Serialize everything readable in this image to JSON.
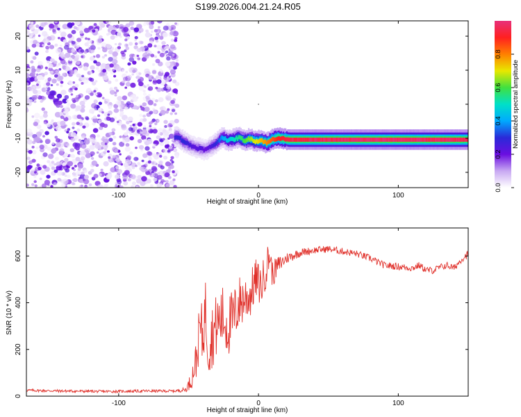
{
  "title": "S199.2026.004.21.24.R05",
  "chart_data": [
    {
      "type": "heatmap",
      "xlabel": "Height of straight line (km)",
      "ylabel": "Frequency (Hz)",
      "xlim": [
        -166,
        150
      ],
      "ylim": [
        -24.5,
        24.5
      ],
      "xticks": [
        -100,
        0,
        100
      ],
      "yticks": [
        -20,
        -10,
        0,
        10,
        20
      ],
      "colorbar": {
        "label": "Normalized spectral amplitude",
        "range": [
          0,
          1
        ],
        "ticks": [
          0.0,
          0.2,
          0.4,
          0.6,
          0.8
        ],
        "colormap": [
          "#ffffff",
          "#c8a8f2",
          "#6a0ee0",
          "#2a2ad8",
          "#00aaff",
          "#00e0c8",
          "#40e040",
          "#e8e800",
          "#ff8000",
          "#ff2020",
          "#e8307a"
        ]
      },
      "noise_band_x": [
        -166,
        -60
      ],
      "signal_trace": {
        "x": [
          -58,
          -54,
          -50,
          -46,
          -42,
          -38,
          -34,
          -30,
          -26,
          -22,
          -18,
          -14,
          -10,
          -6,
          -2,
          2,
          6,
          10,
          14,
          18,
          22,
          40,
          60,
          80,
          100,
          120,
          150
        ],
        "freq": [
          -9.5,
          -10.8,
          -11.8,
          -12.6,
          -13.0,
          -13.4,
          -12.4,
          -11.3,
          -9.6,
          -10.6,
          -10.3,
          -9.8,
          -10.7,
          -10.1,
          -10.9,
          -10.6,
          -11.4,
          -10.3,
          -9.9,
          -10.2,
          -10.4,
          -10.4,
          -10.4,
          -10.4,
          -10.4,
          -10.4,
          -10.4
        ],
        "amp": [
          0.28,
          0.3,
          0.26,
          0.22,
          0.24,
          0.2,
          0.25,
          0.3,
          0.4,
          0.45,
          0.5,
          0.55,
          0.6,
          0.65,
          0.7,
          0.75,
          0.8,
          0.85,
          0.9,
          0.92,
          0.95,
          0.96,
          0.97,
          0.98,
          0.98,
          0.97,
          0.96
        ]
      }
    },
    {
      "type": "line",
      "xlabel": "Height of straight line (km)",
      "ylabel": "SNR (10 * v/v)",
      "xlim": [
        -166,
        150
      ],
      "ylim": [
        0,
        720
      ],
      "xticks": [
        -100,
        0,
        100
      ],
      "yticks": [
        0,
        200,
        400,
        600
      ],
      "line_color": "#e0302a",
      "series": [
        {
          "x": [
            -166,
            -140,
            -110,
            -80,
            -60,
            -52,
            -48,
            -44,
            -42,
            -40,
            -38,
            -36,
            -34,
            -30,
            -26,
            -22,
            -18,
            -14,
            -10,
            -6,
            -2,
            2,
            6,
            8,
            10,
            14,
            20,
            30,
            40,
            50,
            60,
            70,
            80,
            90,
            100,
            110,
            115,
            120,
            125,
            130,
            135,
            140,
            145,
            150
          ],
          "values": [
            25,
            22,
            20,
            22,
            22,
            28,
            70,
            170,
            300,
            250,
            380,
            220,
            250,
            300,
            340,
            300,
            330,
            400,
            420,
            430,
            500,
            470,
            560,
            610,
            520,
            560,
            590,
            615,
            625,
            630,
            620,
            610,
            590,
            560,
            555,
            548,
            560,
            540,
            538,
            552,
            560,
            548,
            585,
            610
          ],
          "noise": [
            6,
            6,
            6,
            6,
            6,
            10,
            40,
            90,
            120,
            140,
            140,
            140,
            140,
            140,
            140,
            140,
            130,
            120,
            110,
            100,
            90,
            90,
            80,
            70,
            60,
            40,
            25,
            18,
            15,
            15,
            15,
            15,
            15,
            15,
            15,
            15,
            15,
            15,
            15,
            15,
            15,
            15,
            15,
            15
          ]
        }
      ]
    }
  ]
}
